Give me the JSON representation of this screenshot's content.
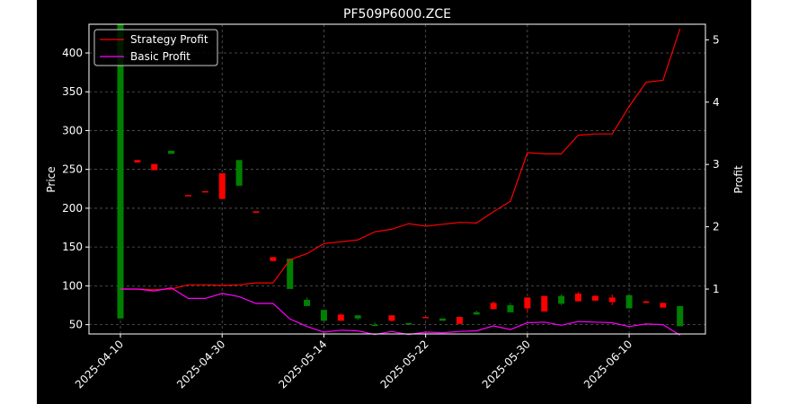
{
  "chart_data": {
    "type": "candlestick+line",
    "title": "PF509P6000.ZCE",
    "ylabel": "Price",
    "y2label": "Profit",
    "ylim": [
      38,
      437
    ],
    "y2lim": [
      0.28,
      5.25
    ],
    "yticks": [
      50,
      100,
      150,
      200,
      250,
      300,
      350,
      400
    ],
    "y2ticks": [
      1,
      2,
      3,
      4,
      5
    ],
    "grid": true,
    "legend_position": "top-left",
    "x_tick_labels": [
      "2025-04-10",
      "2025-04-30",
      "2025-05-14",
      "2025-05-22",
      "2025-05-30",
      "2025-06-10"
    ],
    "candles": [
      {
        "o": 58,
        "c": 437,
        "h": 437,
        "l": 58
      },
      {
        "o": 262,
        "c": 259,
        "h": 262,
        "l": 259
      },
      {
        "o": 257,
        "c": 249,
        "h": 257,
        "l": 249
      },
      {
        "o": 270,
        "c": 274,
        "h": 274,
        "l": 270
      },
      {
        "o": 217,
        "c": 216,
        "h": 217,
        "l": 216
      },
      {
        "o": 222,
        "c": 221,
        "h": 222,
        "l": 221
      },
      {
        "o": 245,
        "c": 212,
        "h": 245,
        "l": 212
      },
      {
        "o": 229,
        "c": 262,
        "h": 262,
        "l": 229
      },
      {
        "o": 196,
        "c": 194,
        "h": 196,
        "l": 194
      },
      {
        "o": 137,
        "c": 132,
        "h": 137,
        "l": 132
      },
      {
        "o": 96,
        "c": 135,
        "h": 135,
        "l": 96
      },
      {
        "o": 74,
        "c": 82,
        "h": 85,
        "l": 74
      },
      {
        "o": 55,
        "c": 69,
        "h": 69,
        "l": 55
      },
      {
        "o": 63,
        "c": 55,
        "h": 64,
        "l": 55
      },
      {
        "o": 58,
        "c": 62,
        "h": 62,
        "l": 56
      },
      {
        "o": 50,
        "c": 50,
        "h": 53,
        "l": 48
      },
      {
        "o": 62,
        "c": 55,
        "h": 62,
        "l": 54
      },
      {
        "o": 50,
        "c": 52,
        "h": 52,
        "l": 50
      },
      {
        "o": 60,
        "c": 59,
        "h": 60,
        "l": 59
      },
      {
        "o": 55,
        "c": 58,
        "h": 58,
        "l": 55
      },
      {
        "o": 60,
        "c": 51,
        "h": 60,
        "l": 51
      },
      {
        "o": 63,
        "c": 66,
        "h": 68,
        "l": 63
      },
      {
        "o": 78,
        "c": 70,
        "h": 80,
        "l": 70
      },
      {
        "o": 66,
        "c": 75,
        "h": 78,
        "l": 66
      },
      {
        "o": 85,
        "c": 71,
        "h": 85,
        "l": 65
      },
      {
        "o": 87,
        "c": 67,
        "h": 87,
        "l": 67
      },
      {
        "o": 77,
        "c": 87,
        "h": 89,
        "l": 75
      },
      {
        "o": 90,
        "c": 80,
        "h": 92,
        "l": 80
      },
      {
        "o": 87,
        "c": 81,
        "h": 88,
        "l": 81
      },
      {
        "o": 85,
        "c": 79,
        "h": 89,
        "l": 75
      },
      {
        "o": 71,
        "c": 88,
        "h": 88,
        "l": 71
      },
      {
        "o": 80,
        "c": 78,
        "h": 81,
        "l": 78
      },
      {
        "o": 78,
        "c": 72,
        "h": 78,
        "l": 72
      },
      {
        "o": 48,
        "c": 74,
        "h": 74,
        "l": 48
      }
    ],
    "tick_candle_index": [
      0,
      6,
      12,
      18,
      24,
      30
    ],
    "series": [
      {
        "name": "Strategy Profit",
        "color": "#ff0000",
        "values": [
          1.0,
          1.0,
          0.99,
          1.0,
          1.07,
          1.07,
          1.06,
          1.07,
          1.1,
          1.1,
          1.47,
          1.57,
          1.73,
          1.76,
          1.79,
          1.92,
          1.96,
          2.05,
          2.01,
          2.04,
          2.07,
          2.06,
          2.24,
          2.41,
          3.19,
          3.17,
          3.17,
          3.47,
          3.49,
          3.49,
          3.93,
          4.32,
          4.35,
          5.18
        ]
      },
      {
        "name": "Basic Profit",
        "color": "#ff00ff",
        "values": [
          1.0,
          1.0,
          0.97,
          1.02,
          0.85,
          0.85,
          0.93,
          0.88,
          0.77,
          0.77,
          0.52,
          0.4,
          0.31,
          0.34,
          0.33,
          0.27,
          0.32,
          0.27,
          0.31,
          0.3,
          0.32,
          0.33,
          0.41,
          0.35,
          0.46,
          0.47,
          0.42,
          0.48,
          0.47,
          0.46,
          0.4,
          0.44,
          0.43,
          0.26
        ]
      }
    ],
    "up_color": "#008000",
    "down_color": "#ff0000",
    "background": "#000000",
    "grid_color": "#5a5a5a"
  }
}
